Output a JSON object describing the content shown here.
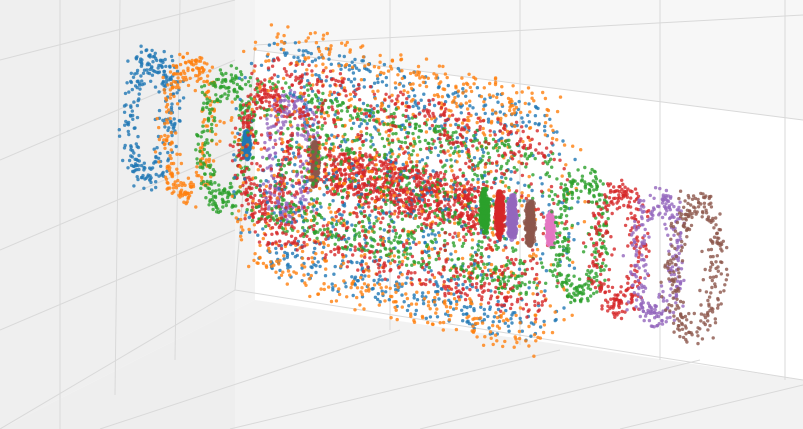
{
  "chart_data": {
    "type": "scatter",
    "subtype": "3d-scatter",
    "title": "",
    "xlabel": "",
    "ylabel": "",
    "zlabel": "",
    "legend": "none",
    "grid": true,
    "description_of_structure": "",
    "palette": [
      "#1f77b4",
      "#ff7f0e",
      "#2ca02c",
      "#d62728",
      "#9467bd",
      "#8c564b",
      "#e377c2"
    ],
    "series": [
      {
        "color": "#1f77b4",
        "shape": "ring",
        "x_center": -1.0,
        "radius": 0.55
      },
      {
        "color": "#ff7f0e",
        "shape": "ring",
        "x_center": -0.85,
        "radius": 0.6
      },
      {
        "color": "#2ca02c",
        "shape": "ring",
        "x_center": -0.7,
        "radius": 0.58
      },
      {
        "color": "#d62728",
        "shape": "ring",
        "x_center": -0.55,
        "radius": 0.55
      },
      {
        "color": "#9467bd",
        "shape": "ring",
        "x_center": -0.45,
        "radius": 0.52
      },
      {
        "color": "#8c564b",
        "shape": "disk",
        "x_center": -0.35,
        "radius": 0.2
      },
      {
        "color": "#1f77b4",
        "shape": "disk",
        "x_center": -0.62,
        "radius": 0.12
      },
      {
        "color": "#d62728",
        "shape": "cylinder",
        "x_center": 0.0,
        "radius": 0.22
      },
      {
        "color": "#1f77b4",
        "shape": "shell",
        "x_center": 0.0,
        "radius": 0.95
      },
      {
        "color": "#ff7f0e",
        "shape": "shell",
        "x_center": 0.0,
        "radius": 1.05
      },
      {
        "color": "#2ca02c",
        "shape": "shell",
        "x_center": 0.0,
        "radius": 0.6
      },
      {
        "color": "#d62728",
        "shape": "shell",
        "x_center": 0.0,
        "radius": 0.75
      },
      {
        "color": "#2ca02c",
        "shape": "disk",
        "x_center": 0.32,
        "radius": 0.2
      },
      {
        "color": "#d62728",
        "shape": "disk",
        "x_center": 0.38,
        "radius": 0.2
      },
      {
        "color": "#9467bd",
        "shape": "disk",
        "x_center": 0.43,
        "radius": 0.2
      },
      {
        "color": "#8c564b",
        "shape": "disk",
        "x_center": 0.5,
        "radius": 0.2
      },
      {
        "color": "#e377c2",
        "shape": "disk",
        "x_center": 0.58,
        "radius": 0.15
      },
      {
        "color": "#2ca02c",
        "shape": "ring",
        "x_center": 0.7,
        "radius": 0.55
      },
      {
        "color": "#d62728",
        "shape": "ring",
        "x_center": 0.85,
        "radius": 0.55
      },
      {
        "color": "#9467bd",
        "shape": "ring",
        "x_center": 1.0,
        "radius": 0.55
      },
      {
        "color": "#8c564b",
        "shape": "ring",
        "x_center": 1.15,
        "radius": 0.6
      }
    ],
    "x_range": [
      -1.2,
      1.25
    ],
    "y_range": [
      -1.1,
      1.1
    ],
    "z_range": [
      -1.1,
      1.1
    ]
  }
}
